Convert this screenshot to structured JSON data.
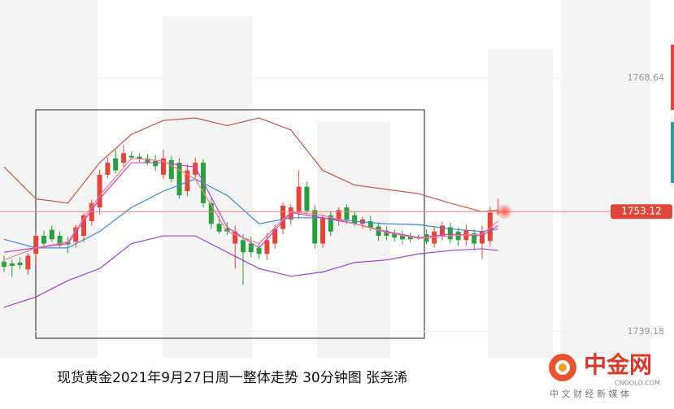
{
  "chart_data": {
    "type": "candlestick",
    "caption": "现货黄金2021年9月27日周一整体走势 30分钟图  张尧浠",
    "brand": "中金网",
    "brand_url": "CNGOLD.COM",
    "brand_slogan": "中 文 财 经 新 媒 体",
    "ylim": [
      1735.0,
      1777.7
    ],
    "yticks": [
      1768.64,
      1739.18
    ],
    "last_price": 1753.12,
    "up_color": "#e0473b",
    "down_color": "#2e9e3e",
    "open": [
      1747.3,
      1747.1,
      1747.2,
      1746.4,
      1748.2,
      1750.3,
      1751.0,
      1750.3,
      1749.6,
      1749.6,
      1750.3,
      1752.0,
      1753.6,
      1757.4,
      1759.3,
      1758.8,
      1759.6,
      1759.5,
      1759.3,
      1759.0,
      1757.4,
      1759.1,
      1758.8,
      1755.5,
      1757.4,
      1758.8,
      1754.1,
      1751.7,
      1751.2,
      1749.4,
      1749.8,
      1749.4,
      1748.9,
      1748.2,
      1749.4,
      1751.1,
      1752.2,
      1753.0,
      1756.0,
      1753.3,
      1749.4,
      1752.7,
      1752.0,
      1753.6,
      1752.7,
      1751.7,
      1752.0,
      1751.4,
      1750.9,
      1750.6,
      1750.5,
      1750.3,
      1750.1,
      1750.5,
      1749.4,
      1750.3,
      1751.3,
      1750.8,
      1749.8,
      1750.6,
      1749.4,
      1749.7,
      1753.0
    ],
    "high": [
      1748.0,
      1747.6,
      1747.8,
      1748.3,
      1750.6,
      1750.9,
      1751.5,
      1750.8,
      1750.2,
      1751.6,
      1752.9,
      1754.5,
      1758.0,
      1759.4,
      1760.3,
      1760.9,
      1760.1,
      1759.9,
      1759.8,
      1759.7,
      1760.3,
      1759.6,
      1759.3,
      1758.6,
      1759.4,
      1759.2,
      1754.7,
      1752.6,
      1751.9,
      1751.5,
      1750.5,
      1750.2,
      1749.5,
      1750.6,
      1751.6,
      1754.2,
      1754.0,
      1757.9,
      1756.6,
      1753.9,
      1752.8,
      1753.2,
      1753.6,
      1754.0,
      1753.1,
      1752.5,
      1752.6,
      1751.8,
      1751.4,
      1751.0,
      1750.9,
      1750.7,
      1750.4,
      1751.1,
      1751.4,
      1751.9,
      1751.8,
      1751.3,
      1751.6,
      1751.1,
      1751.5,
      1753.7,
      1754.6
    ],
    "low": [
      1746.1,
      1745.5,
      1746.4,
      1745.8,
      1746.9,
      1749.1,
      1749.6,
      1749.0,
      1748.3,
      1748.9,
      1749.5,
      1751.5,
      1752.8,
      1757.0,
      1757.5,
      1758.2,
      1759.1,
      1758.9,
      1758.5,
      1757.8,
      1756.9,
      1756.5,
      1754.6,
      1754.9,
      1757.0,
      1753.6,
      1751.1,
      1750.5,
      1750.4,
      1746.5,
      1744.6,
      1747.8,
      1747.6,
      1747.5,
      1748.8,
      1750.5,
      1751.6,
      1752.3,
      1752.8,
      1748.8,
      1748.9,
      1750.3,
      1751.5,
      1751.7,
      1751.4,
      1751.1,
      1750.9,
      1749.7,
      1749.8,
      1749.6,
      1749.3,
      1749.5,
      1749.8,
      1749.3,
      1748.9,
      1749.8,
      1749.4,
      1749.1,
      1749.2,
      1748.6,
      1747.6,
      1749.1,
      1752.7
    ],
    "close": [
      1746.7,
      1746.8,
      1746.9,
      1748.0,
      1750.3,
      1749.4,
      1749.9,
      1749.2,
      1749.3,
      1751.3,
      1752.7,
      1754.1,
      1757.4,
      1758.8,
      1757.9,
      1759.9,
      1759.4,
      1759.2,
      1758.8,
      1758.4,
      1759.3,
      1756.9,
      1755.0,
      1757.9,
      1758.8,
      1754.1,
      1751.7,
      1750.8,
      1750.8,
      1750.8,
      1748.4,
      1748.4,
      1748.2,
      1749.8,
      1751.1,
      1753.8,
      1753.6,
      1756.0,
      1753.2,
      1749.4,
      1752.4,
      1750.8,
      1753.3,
      1752.2,
      1751.7,
      1752.2,
      1751.3,
      1750.3,
      1750.3,
      1750.1,
      1749.9,
      1749.9,
      1750.0,
      1749.6,
      1750.8,
      1751.5,
      1749.9,
      1749.8,
      1751.0,
      1749.4,
      1750.8,
      1753.0,
      1753.12
    ],
    "overlays": [
      {
        "color": "#c8553d",
        "x": [
          0,
          4,
          8,
          12,
          16,
          20,
          24,
          28,
          32,
          36,
          40,
          44,
          48,
          52,
          56,
          60,
          62
        ],
        "values": [
          1758.3,
          1754.6,
          1754.1,
          1758.8,
          1762.1,
          1763.7,
          1764.0,
          1763.1,
          1764.0,
          1762.6,
          1757.9,
          1756.2,
          1755.7,
          1755.2,
          1754.1,
          1753.1,
          1753.3
        ]
      },
      {
        "color": "#a040d0",
        "x": [
          0,
          4,
          8,
          12,
          16,
          20,
          24,
          28,
          32,
          36,
          40,
          44,
          48,
          52,
          56,
          60,
          62
        ],
        "values": [
          1742.0,
          1743.2,
          1745.1,
          1746.5,
          1749.4,
          1750.3,
          1750.3,
          1748.4,
          1746.5,
          1745.6,
          1746.1,
          1747.2,
          1747.5,
          1748.2,
          1748.6,
          1748.8,
          1748.6
        ]
      },
      {
        "color": "#3a8ad8",
        "x": [
          0,
          4,
          8,
          12,
          16,
          20,
          24,
          28,
          32,
          36,
          40,
          44,
          48,
          52,
          56,
          60,
          62
        ],
        "values": [
          1749.9,
          1748.9,
          1748.9,
          1750.8,
          1753.6,
          1755.5,
          1756.9,
          1755.0,
          1751.7,
          1752.4,
          1752.4,
          1752.0,
          1751.7,
          1751.6,
          1751.1,
          1750.8,
          1751.1
        ]
      },
      {
        "color": "#d040d0",
        "x": [
          0,
          4,
          8,
          12,
          16,
          20,
          24,
          28,
          32,
          36,
          40,
          44,
          48,
          52,
          56,
          60,
          62
        ],
        "values": [
          1748.4,
          1748.9,
          1749.4,
          1754.6,
          1758.8,
          1758.8,
          1758.3,
          1751.3,
          1748.9,
          1753.0,
          1752.4,
          1751.7,
          1750.8,
          1750.1,
          1750.5,
          1750.3,
          1751.5
        ]
      },
      {
        "color": "#f08080",
        "x": [
          0,
          4,
          8,
          12,
          16,
          20,
          24,
          28,
          32,
          36,
          40,
          44,
          48,
          52,
          56,
          60,
          62
        ],
        "values": [
          1747.5,
          1748.9,
          1749.6,
          1755.0,
          1759.3,
          1759.0,
          1756.9,
          1750.8,
          1749.4,
          1753.1,
          1752.7,
          1751.7,
          1750.7,
          1750.0,
          1750.3,
          1750.5,
          1752.0
        ]
      }
    ]
  }
}
